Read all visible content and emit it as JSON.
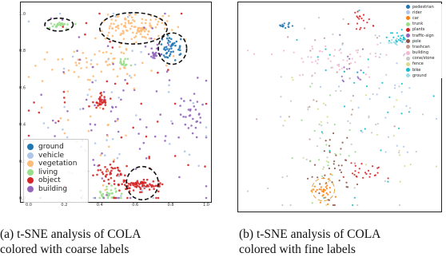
{
  "chart_data": [
    {
      "type": "scatter",
      "title": "",
      "xlabel": "",
      "ylabel": "",
      "xlim": [
        0,
        1
      ],
      "ylim": [
        0,
        1
      ],
      "x_ticks": [
        "0.0",
        "0.2",
        "0.4",
        "0.6",
        "0.8",
        "1.0"
      ],
      "y_ticks": [
        "0.0",
        "0.2",
        "0.4",
        "0.6",
        "0.8",
        "1.0"
      ],
      "legend_position": "bottom-left",
      "grid": false,
      "series": [
        {
          "name": "ground",
          "color": "#1f77b4"
        },
        {
          "name": "vehicle",
          "color": "#aec7e8"
        },
        {
          "name": "vegetation",
          "color": "#ffbb78"
        },
        {
          "name": "living",
          "color": "#98df8a"
        },
        {
          "name": "object",
          "color": "#d62728"
        },
        {
          "name": "building",
          "color": "#9467bd"
        }
      ],
      "clusters": [
        {
          "series": "vegetation",
          "x": 0.6,
          "y": 0.92,
          "sx": 0.09,
          "sy": 0.04,
          "n": 120
        },
        {
          "series": "vegetation",
          "x": 0.35,
          "y": 0.72,
          "sx": 0.18,
          "sy": 0.05,
          "n": 60
        },
        {
          "series": "living",
          "x": 0.17,
          "y": 0.94,
          "sx": 0.03,
          "sy": 0.01,
          "n": 25
        },
        {
          "series": "living",
          "x": 0.53,
          "y": 0.73,
          "sx": 0.015,
          "sy": 0.015,
          "n": 15
        },
        {
          "series": "living",
          "x": 0.45,
          "y": 0.02,
          "sx": 0.03,
          "sy": 0.02,
          "n": 30
        },
        {
          "series": "ground",
          "x": 0.8,
          "y": 0.81,
          "sx": 0.03,
          "sy": 0.03,
          "n": 45
        },
        {
          "series": "building",
          "x": 0.72,
          "y": 0.79,
          "sx": 0.02,
          "sy": 0.02,
          "n": 20
        },
        {
          "series": "building",
          "x": 0.93,
          "y": 0.45,
          "sx": 0.04,
          "sy": 0.08,
          "n": 30
        },
        {
          "series": "building",
          "x": 0.55,
          "y": 0.45,
          "sx": 0.28,
          "sy": 0.28,
          "n": 80
        },
        {
          "series": "object",
          "x": 0.63,
          "y": 0.07,
          "sx": 0.06,
          "sy": 0.015,
          "n": 80
        },
        {
          "series": "object",
          "x": 0.41,
          "y": 0.52,
          "sx": 0.02,
          "sy": 0.02,
          "n": 30
        },
        {
          "series": "object",
          "x": 0.45,
          "y": 0.13,
          "sx": 0.05,
          "sy": 0.03,
          "n": 40
        },
        {
          "series": "object",
          "x": 0.5,
          "y": 0.4,
          "sx": 0.3,
          "sy": 0.3,
          "n": 50
        },
        {
          "series": "vehicle",
          "x": 0.5,
          "y": 0.45,
          "sx": 0.3,
          "sy": 0.3,
          "n": 50
        },
        {
          "series": "vegetation",
          "x": 0.35,
          "y": 0.3,
          "sx": 0.15,
          "sy": 0.2,
          "n": 30
        }
      ],
      "annotations": [
        {
          "shape": "dashed-ellipse",
          "x": 0.17,
          "y": 0.94,
          "rx": 0.08,
          "ry": 0.035
        },
        {
          "shape": "dashed-ellipse",
          "x": 0.59,
          "y": 0.92,
          "rx": 0.19,
          "ry": 0.085
        },
        {
          "shape": "dashed-ellipse",
          "x": 0.81,
          "y": 0.81,
          "rx": 0.08,
          "ry": 0.085
        },
        {
          "shape": "dashed-ellipse",
          "x": 0.64,
          "y": 0.08,
          "rx": 0.09,
          "ry": 0.09
        }
      ]
    },
    {
      "type": "scatter",
      "title": "",
      "xlabel": "",
      "ylabel": "",
      "legend_position": "top-right",
      "grid": false,
      "series": [
        {
          "name": "pedestrian",
          "color": "#1f77b4"
        },
        {
          "name": "rider",
          "color": "#aec7e8"
        },
        {
          "name": "car",
          "color": "#ff7f0e"
        },
        {
          "name": "trunk",
          "color": "#98df8a"
        },
        {
          "name": "plants",
          "color": "#d62728"
        },
        {
          "name": "traffic-sign",
          "color": "#9467bd"
        },
        {
          "name": "pole",
          "color": "#8c564b"
        },
        {
          "name": "trashcan",
          "color": "#c49c94"
        },
        {
          "name": "building",
          "color": "#f7b6d2"
        },
        {
          "name": "cone/stone",
          "color": "#c7c7c7"
        },
        {
          "name": "fence",
          "color": "#dbdb8d"
        },
        {
          "name": "bike",
          "color": "#17becf"
        },
        {
          "name": "ground",
          "color": "#9edae5"
        }
      ],
      "clusters": [
        {
          "series": "ground",
          "x": 0.83,
          "y": 0.84,
          "sx": 0.05,
          "sy": 0.01,
          "n": 40
        },
        {
          "series": "bike",
          "x": 0.81,
          "y": 0.86,
          "sx": 0.03,
          "sy": 0.015,
          "n": 25
        },
        {
          "series": "pedestrian",
          "x": 0.2,
          "y": 0.92,
          "sx": 0.03,
          "sy": 0.008,
          "n": 15
        },
        {
          "series": "plants",
          "x": 0.6,
          "y": 0.95,
          "sx": 0.03,
          "sy": 0.03,
          "n": 20
        },
        {
          "series": "plants",
          "x": 0.62,
          "y": 0.17,
          "sx": 0.05,
          "sy": 0.03,
          "n": 25
        },
        {
          "series": "building",
          "x": 0.45,
          "y": 0.75,
          "sx": 0.18,
          "sy": 0.05,
          "n": 50
        },
        {
          "series": "cone/stone",
          "x": 0.5,
          "y": 0.5,
          "sx": 0.25,
          "sy": 0.25,
          "n": 60
        },
        {
          "series": "pole",
          "x": 0.45,
          "y": 0.2,
          "sx": 0.06,
          "sy": 0.1,
          "n": 40
        },
        {
          "series": "trunk",
          "x": 0.4,
          "y": 0.3,
          "sx": 0.08,
          "sy": 0.12,
          "n": 20
        },
        {
          "series": "fence",
          "x": 0.55,
          "y": 0.35,
          "sx": 0.2,
          "sy": 0.2,
          "n": 25
        },
        {
          "series": "traffic-sign",
          "x": 0.56,
          "y": 0.7,
          "sx": 0.04,
          "sy": 0.06,
          "n": 15
        },
        {
          "series": "trashcan",
          "x": 0.5,
          "y": 0.6,
          "sx": 0.2,
          "sy": 0.2,
          "n": 20
        },
        {
          "series": "bike",
          "x": 0.55,
          "y": 0.55,
          "sx": 0.25,
          "sy": 0.25,
          "n": 30
        },
        {
          "series": "car",
          "x": 0.4,
          "y": 0.08,
          "sx": 0.03,
          "sy": 0.03,
          "n": 30
        },
        {
          "series": "rider",
          "x": 0.7,
          "y": 0.6,
          "sx": 0.2,
          "sy": 0.2,
          "n": 30
        }
      ],
      "annotations": [
        {
          "shape": "dashed-circle",
          "x": 0.4,
          "y": 0.08,
          "r": 0.06
        }
      ]
    }
  ],
  "captions": {
    "a_line1": "(a) t-SNE analysis of COLA",
    "a_line2": "colored with coarse labels",
    "b_line1": "(b) t-SNE analysis of COLA",
    "b_line2": "colored with fine labels"
  }
}
